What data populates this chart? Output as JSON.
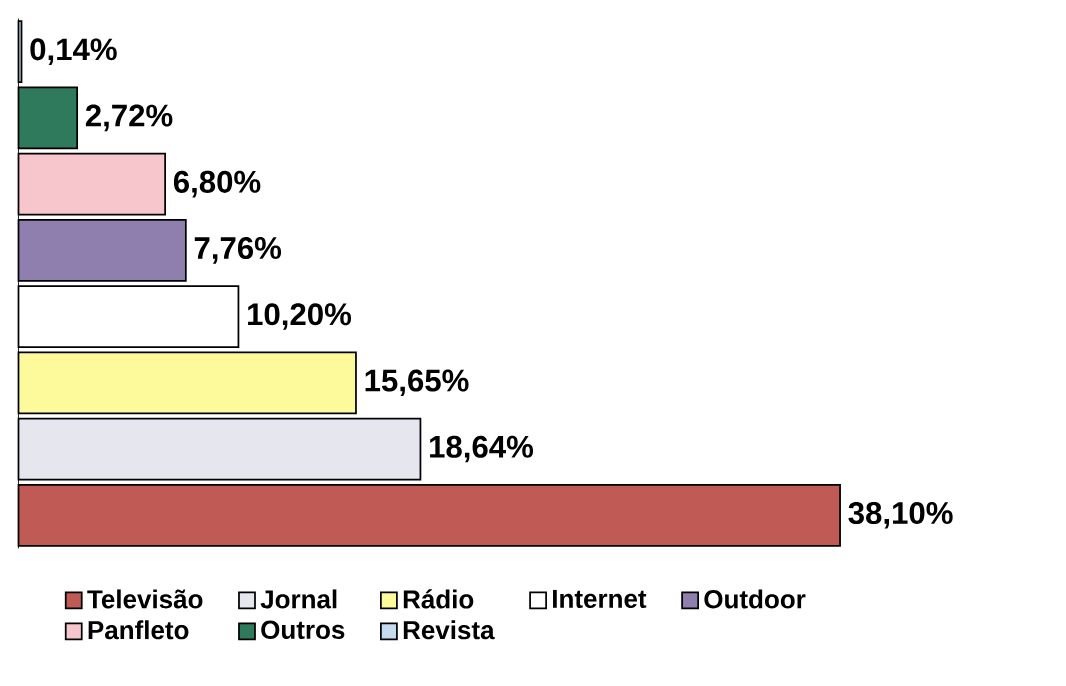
{
  "chart_data": {
    "type": "bar",
    "orientation": "horizontal",
    "stacked": true,
    "legend": "bottom",
    "categories": [
      null,
      null,
      null,
      null,
      null,
      null,
      null,
      null
    ],
    "series": [
      {
        "name": "Televisão",
        "color": "#bf5a55",
        "values": [
          null,
          null,
          null,
          null,
          null,
          null,
          null,
          38.1
        ],
        "value_labels": [
          null,
          null,
          null,
          null,
          null,
          null,
          null,
          "38,10%"
        ]
      },
      {
        "name": "Jornal",
        "color": "#e6e6ee",
        "values": [
          null,
          null,
          null,
          null,
          null,
          null,
          18.64,
          null
        ],
        "value_labels": [
          null,
          null,
          null,
          null,
          null,
          null,
          "18,64%",
          null
        ]
      },
      {
        "name": "Rádio",
        "color": "#fdfa9c",
        "values": [
          null,
          null,
          null,
          null,
          null,
          15.65,
          null,
          null
        ],
        "value_labels": [
          null,
          null,
          null,
          null,
          null,
          "15,65%",
          null,
          null
        ]
      },
      {
        "name": "Internet",
        "color": "#ffffff",
        "values": [
          null,
          null,
          null,
          null,
          10.2,
          null,
          null,
          null
        ],
        "value_labels": [
          null,
          null,
          null,
          null,
          "10,20%",
          null,
          null,
          null
        ]
      },
      {
        "name": "Outdoor",
        "color": "#8e7fae",
        "values": [
          null,
          null,
          null,
          7.76,
          null,
          null,
          null,
          null
        ],
        "value_labels": [
          null,
          null,
          null,
          "7,76%",
          null,
          null,
          null,
          null
        ]
      },
      {
        "name": "Panfleto",
        "color": "#f6c6cc",
        "values": [
          null,
          null,
          6.8,
          null,
          null,
          null,
          null,
          null
        ],
        "value_labels": [
          null,
          null,
          "6,80%",
          null,
          null,
          null,
          null,
          null
        ]
      },
      {
        "name": "Outros",
        "color": "#2f7a5c",
        "values": [
          null,
          2.72,
          null,
          null,
          null,
          null,
          null,
          null
        ],
        "value_labels": [
          null,
          "2,72%",
          null,
          null,
          null,
          null,
          null,
          null
        ]
      },
      {
        "name": "Revista",
        "color": "#c4daf0",
        "values": [
          0.14,
          null,
          null,
          null,
          null,
          null,
          null,
          null
        ],
        "value_labels": [
          "0,14%",
          null,
          null,
          null,
          null,
          null,
          null,
          null
        ]
      }
    ]
  }
}
